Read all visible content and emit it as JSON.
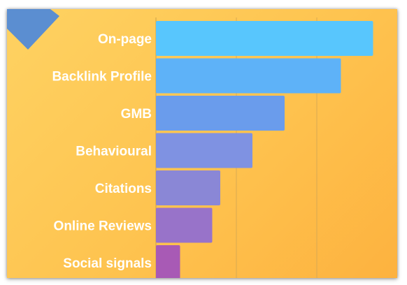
{
  "chart_data": {
    "type": "bar",
    "orientation": "horizontal",
    "categories": [
      "On-page",
      "Backlink Profile",
      "GMB",
      "Behavioural",
      "Citations",
      "Online Reviews",
      "Social signals"
    ],
    "values": [
      27,
      23,
      16,
      12,
      8,
      7,
      3
    ],
    "xlim": [
      0,
      30
    ],
    "title": "",
    "xlabel": "",
    "ylabel": "",
    "grid": "vertical",
    "legend": "none",
    "tick_labels_shown": false,
    "bar_colors": [
      "#58c6fd",
      "#5eb2f8",
      "#6a9cec",
      "#7f92e2",
      "#8a87d6",
      "#9873c9",
      "#a85ab5"
    ],
    "background_gradient": [
      "#fed262",
      "#fdb23f"
    ],
    "corner_decoration_color": "#5b8ed1"
  }
}
